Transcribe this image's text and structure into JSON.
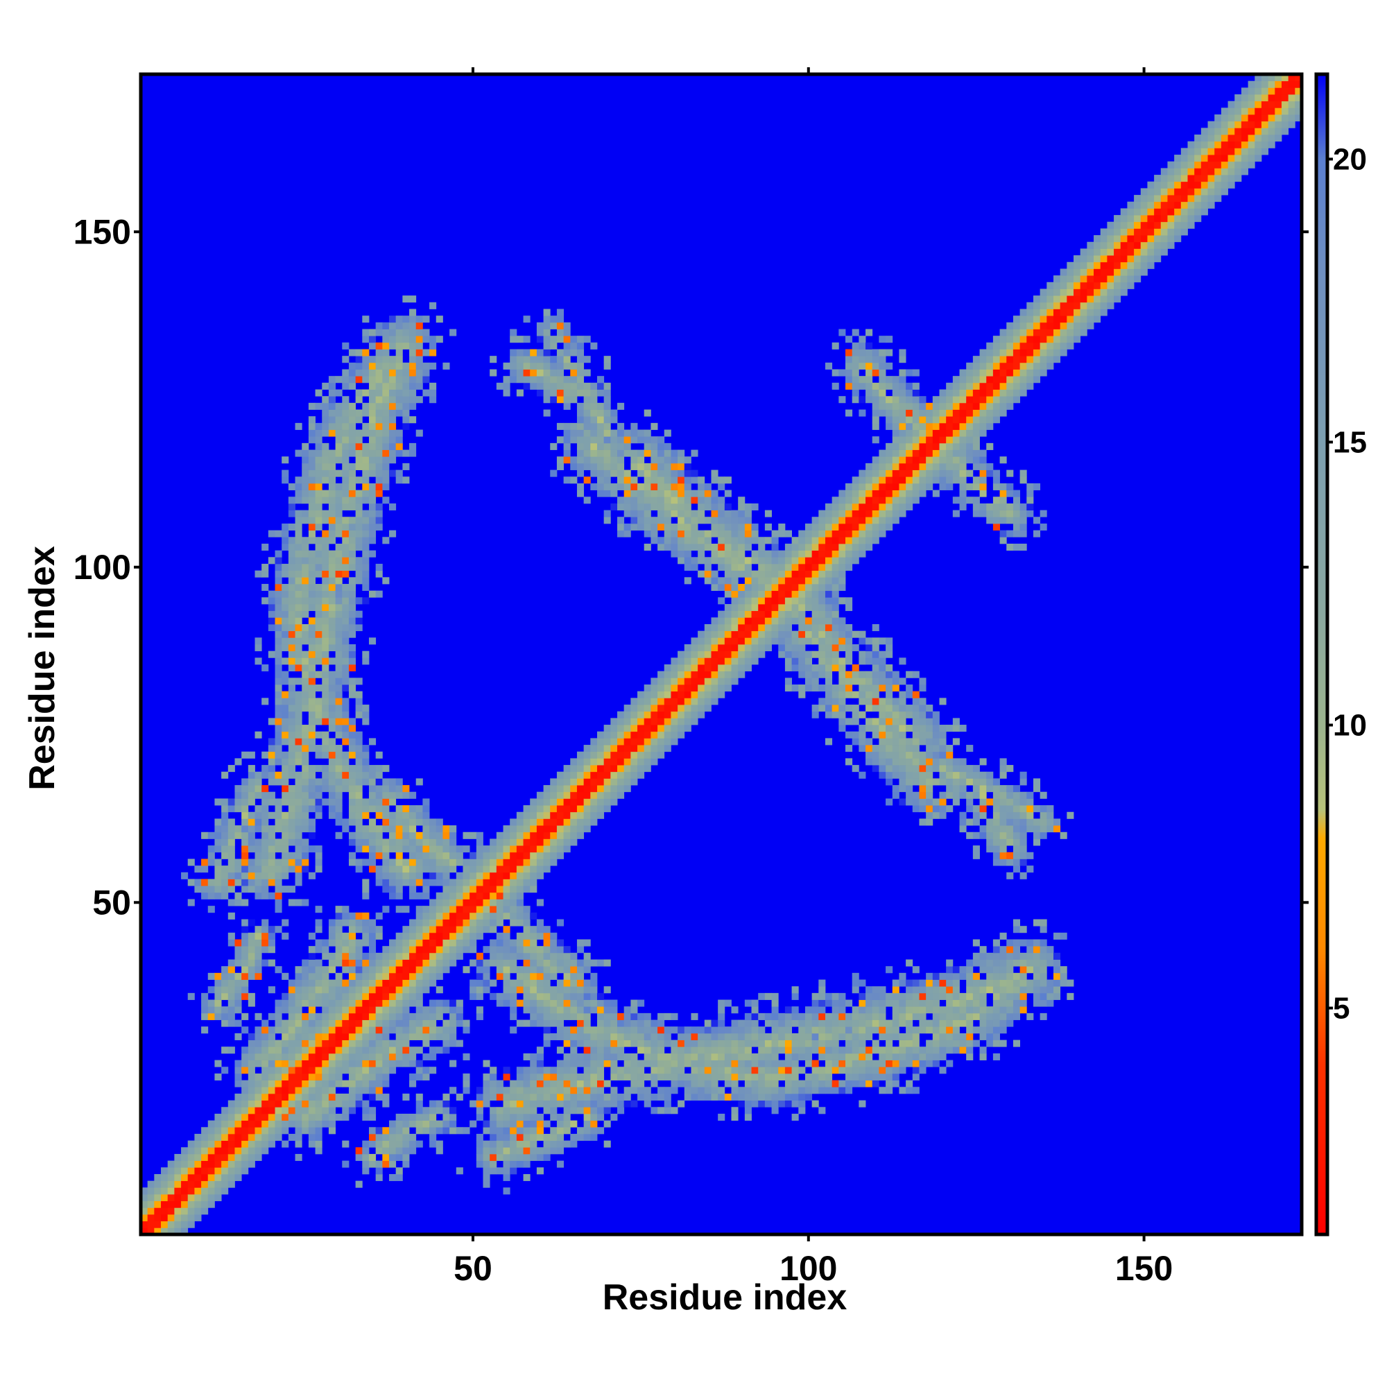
{
  "chart_data": {
    "type": "heatmap",
    "title": "",
    "xlabel": "Residue index",
    "ylabel": "Residue index",
    "xlim": [
      1,
      173
    ],
    "ylim": [
      1,
      173
    ],
    "x_ticks": [
      50,
      100,
      150
    ],
    "y_ticks": [
      50,
      100,
      150
    ],
    "colorbar": {
      "min": 1,
      "max": 21.5,
      "ticks": [
        5,
        10,
        15,
        20
      ],
      "stops": [
        {
          "value": 1,
          "color": "#ff0000"
        },
        {
          "value": 4,
          "color": "#ff3300"
        },
        {
          "value": 6,
          "color": "#ff8800"
        },
        {
          "value": 8,
          "color": "#ffaa00"
        },
        {
          "value": 8.5,
          "color": "#b7c27a"
        },
        {
          "value": 10,
          "color": "#9cb48e"
        },
        {
          "value": 12,
          "color": "#8aa8a0"
        },
        {
          "value": 15,
          "color": "#7d9fb0"
        },
        {
          "value": 18,
          "color": "#6f8fc0"
        },
        {
          "value": 20,
          "color": "#5b7fd0"
        },
        {
          "value": 21.5,
          "color": "#0000f5"
        }
      ]
    },
    "background_color": "#0000f5",
    "diagonal": {
      "core_value": 2.5,
      "band_halfwidth": 6
    },
    "contact_regions": [
      {
        "name": "arm-left-upper",
        "points": [
          [
            20,
            55
          ],
          [
            24,
            70
          ],
          [
            28,
            90
          ],
          [
            32,
            110
          ],
          [
            36,
            125
          ],
          [
            40,
            133
          ]
        ],
        "width": 5
      },
      {
        "name": "arm-bottom",
        "points": [
          [
            55,
            40
          ],
          [
            65,
            33
          ],
          [
            75,
            28
          ],
          [
            85,
            25
          ],
          [
            95,
            24
          ],
          [
            105,
            26
          ],
          [
            115,
            29
          ],
          [
            125,
            33
          ],
          [
            133,
            40
          ]
        ],
        "width": 4.5
      },
      {
        "name": "arm-lower-left",
        "points": [
          [
            53,
            12
          ],
          [
            58,
            14
          ],
          [
            63,
            16
          ],
          [
            67,
            18
          ]
        ],
        "width": 3
      },
      {
        "name": "cross-upper-left",
        "points": [
          [
            68,
            118
          ],
          [
            75,
            112
          ],
          [
            82,
            106
          ],
          [
            90,
            100
          ]
        ],
        "width": 5
      },
      {
        "name": "cross-lower-right",
        "points": [
          [
            98,
            95
          ],
          [
            104,
            87
          ],
          [
            110,
            80
          ],
          [
            116,
            74
          ]
        ],
        "width": 5
      },
      {
        "name": "sparse-right",
        "points": [
          [
            120,
            70
          ],
          [
            128,
            66
          ],
          [
            135,
            62
          ]
        ],
        "width": 2.5
      },
      {
        "name": "sparse-top",
        "points": [
          [
            58,
            130
          ],
          [
            62,
            128
          ],
          [
            66,
            126
          ]
        ],
        "width": 3
      },
      {
        "name": "contact-mid-lower",
        "points": [
          [
            55,
            48
          ],
          [
            60,
            42
          ],
          [
            65,
            38
          ]
        ],
        "width": 3.5
      },
      {
        "name": "contact-diag-side",
        "points": [
          [
            108,
            130
          ],
          [
            112,
            125
          ],
          [
            118,
            120
          ]
        ],
        "width": 3.5
      },
      {
        "name": "contact-left-lower",
        "points": [
          [
            18,
            25
          ],
          [
            22,
            30
          ],
          [
            28,
            38
          ],
          [
            32,
            45
          ]
        ],
        "width": 4
      },
      {
        "name": "contact-bottom-left",
        "points": [
          [
            35,
            12
          ],
          [
            40,
            16
          ],
          [
            45,
            18
          ]
        ],
        "width": 2.5
      }
    ]
  }
}
